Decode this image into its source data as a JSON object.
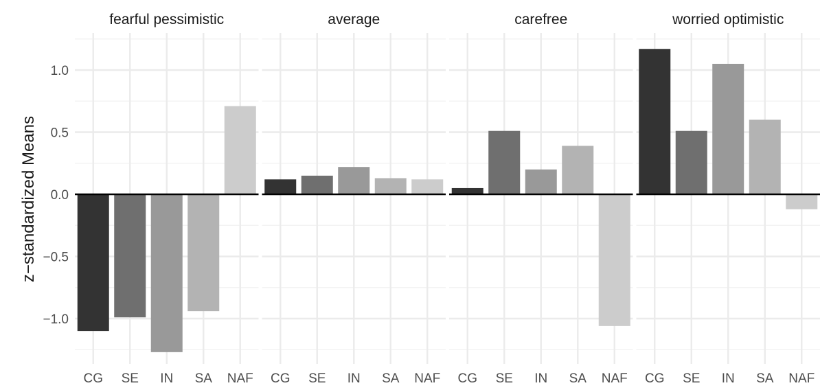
{
  "chart_data": {
    "type": "bar",
    "title": "",
    "xlabel": "",
    "ylabel": "z−standardized Means",
    "ylim": [
      -1.28,
      1.28
    ],
    "y_ticks": [
      1.0,
      0.5,
      0.0,
      -0.5,
      -1.0
    ],
    "y_tick_labels": [
      "1.0",
      "0.5",
      "0.0",
      "−0.5",
      "−1.0"
    ],
    "categories": [
      "CG",
      "SE",
      "IN",
      "SA",
      "NAF"
    ],
    "category_colors": [
      "#333333",
      "#6f6f6f",
      "#999999",
      "#b3b3b3",
      "#cccccc"
    ],
    "grid": true,
    "legend": "none",
    "panels": [
      {
        "title": "fearful pessimistic",
        "values": [
          -1.1,
          -0.99,
          -1.27,
          -0.94,
          0.71
        ]
      },
      {
        "title": "average",
        "values": [
          0.12,
          0.15,
          0.22,
          0.13,
          0.12
        ]
      },
      {
        "title": "carefree",
        "values": [
          0.05,
          0.51,
          0.2,
          0.39,
          -1.06
        ]
      },
      {
        "title": "worried optimistic",
        "values": [
          1.17,
          0.51,
          1.05,
          0.6,
          -0.12
        ]
      }
    ]
  }
}
